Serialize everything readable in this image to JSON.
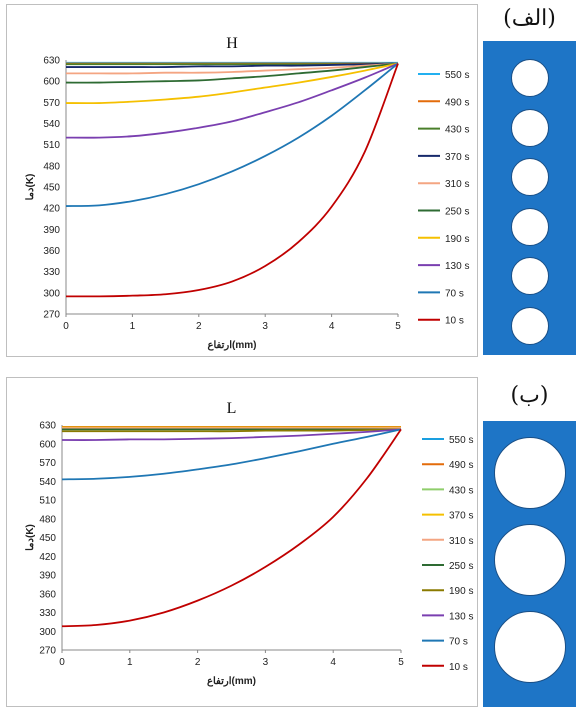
{
  "panel_a": {
    "side_label": "(الف)",
    "hole_count": 6
  },
  "panel_b": {
    "side_label": "(ب)",
    "hole_count": 3
  },
  "chart_data": [
    {
      "type": "line",
      "title": "H",
      "xlabel": "ارتفاع(mm)",
      "ylabel": "دما(K)",
      "xlim": [
        0,
        5
      ],
      "ylim": [
        270,
        630
      ],
      "xticks": [
        0,
        1,
        2,
        3,
        4,
        5
      ],
      "yticks": [
        270,
        300,
        330,
        360,
        390,
        420,
        450,
        480,
        510,
        540,
        570,
        600,
        630
      ],
      "grid": false,
      "legend_position": "right",
      "x": [
        0,
        0.5,
        1,
        1.5,
        2,
        2.5,
        3,
        3.5,
        4,
        4.5,
        5
      ],
      "series": [
        {
          "name": "550 s",
          "color": "#23b0f0",
          "values": [
            626,
            626,
            626,
            626,
            626,
            626,
            626,
            626,
            626,
            626,
            626
          ]
        },
        {
          "name": "490 s",
          "color": "#e36c0a",
          "values": [
            625,
            625,
            625,
            625,
            625,
            625,
            625,
            625,
            625,
            625,
            625
          ]
        },
        {
          "name": "430 s",
          "color": "#4a7f2a",
          "values": [
            624,
            624,
            624,
            624,
            624,
            624,
            624,
            624,
            624,
            624,
            625
          ]
        },
        {
          "name": "370 s",
          "color": "#16296b",
          "values": [
            620,
            620,
            620,
            620,
            621,
            621,
            622,
            622,
            623,
            624,
            625
          ]
        },
        {
          "name": "310 s",
          "color": "#f4a582",
          "values": [
            611,
            611,
            611,
            612,
            612,
            613,
            615,
            617,
            619,
            622,
            625
          ]
        },
        {
          "name": "250 s",
          "color": "#2e6b33",
          "values": [
            598,
            598,
            599,
            600,
            601,
            604,
            607,
            611,
            615,
            620,
            625
          ]
        },
        {
          "name": "190 s",
          "color": "#f5c000",
          "values": [
            569,
            569,
            571,
            574,
            578,
            584,
            591,
            598,
            606,
            615,
            625
          ]
        },
        {
          "name": "130 s",
          "color": "#7a3fb0",
          "values": [
            520,
            520,
            522,
            527,
            534,
            543,
            556,
            570,
            587,
            605,
            625
          ]
        },
        {
          "name": "70 s",
          "color": "#1f77b4",
          "values": [
            423,
            424,
            430,
            440,
            454,
            472,
            494,
            520,
            551,
            587,
            625
          ]
        },
        {
          "name": "10 s",
          "color": "#c00000",
          "values": [
            295,
            295,
            296,
            298,
            304,
            316,
            338,
            372,
            422,
            500,
            625
          ]
        }
      ]
    },
    {
      "type": "line",
      "title": "L",
      "xlabel": "ارتفاع(mm)",
      "ylabel": "دما(K)",
      "xlim": [
        0,
        5
      ],
      "ylim": [
        270,
        630
      ],
      "xticks": [
        0,
        1,
        2,
        3,
        4,
        5
      ],
      "yticks": [
        270,
        300,
        330,
        360,
        390,
        420,
        450,
        480,
        510,
        540,
        570,
        600,
        630
      ],
      "grid": false,
      "legend_position": "right",
      "x": [
        0,
        0.5,
        1,
        1.5,
        2,
        2.5,
        3,
        3.5,
        4,
        4.5,
        5
      ],
      "series": [
        {
          "name": "550 s",
          "color": "#1a9fe0",
          "values": [
            627,
            627,
            627,
            627,
            627,
            627,
            627,
            627,
            627,
            627,
            627
          ]
        },
        {
          "name": "490 s",
          "color": "#e36c0a",
          "values": [
            627,
            627,
            627,
            627,
            627,
            627,
            627,
            627,
            627,
            627,
            627
          ]
        },
        {
          "name": "430 s",
          "color": "#8fce6b",
          "values": [
            626,
            626,
            626,
            626,
            626,
            626,
            626,
            626,
            626,
            626,
            626
          ]
        },
        {
          "name": "370 s",
          "color": "#f5c000",
          "values": [
            626,
            626,
            626,
            626,
            626,
            626,
            626,
            626,
            626,
            626,
            626
          ]
        },
        {
          "name": "310 s",
          "color": "#f4a582",
          "values": [
            625,
            625,
            625,
            625,
            625,
            625,
            625,
            625,
            625,
            625,
            625
          ]
        },
        {
          "name": "250 s",
          "color": "#2e6b33",
          "values": [
            623,
            623,
            623,
            623,
            623,
            623,
            623,
            623,
            623,
            623,
            623
          ]
        },
        {
          "name": "190 s",
          "color": "#8a7a00",
          "values": [
            620,
            620,
            620,
            620,
            620,
            620,
            621,
            621,
            621,
            622,
            623
          ]
        },
        {
          "name": "130 s",
          "color": "#7a3fb0",
          "values": [
            606,
            606,
            607,
            607,
            608,
            609,
            611,
            613,
            616,
            619,
            623
          ]
        },
        {
          "name": "70 s",
          "color": "#1f77b4",
          "values": [
            543,
            544,
            547,
            552,
            559,
            567,
            577,
            588,
            600,
            611,
            623
          ]
        },
        {
          "name": "10 s",
          "color": "#c00000",
          "values": [
            308,
            310,
            317,
            330,
            349,
            373,
            403,
            439,
            483,
            545,
            623
          ]
        }
      ]
    }
  ]
}
